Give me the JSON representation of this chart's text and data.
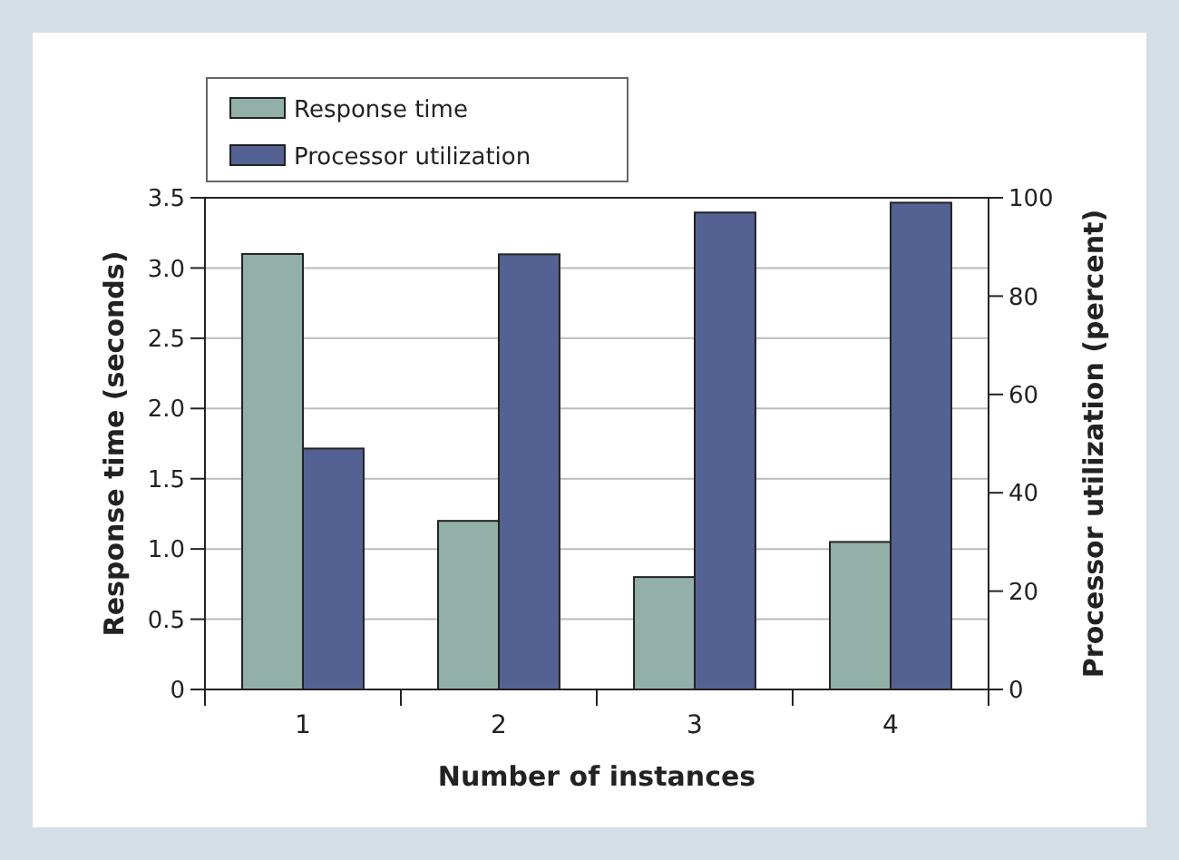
{
  "chart_data": {
    "type": "bar",
    "xlabel": "Number of instances",
    "ylabel": "Response time (seconds)",
    "y2label": "Processor utilization (percent)",
    "categories": [
      "1",
      "2",
      "3",
      "4"
    ],
    "series": [
      {
        "name": "Response time",
        "color": "#93b0a8",
        "values": [
          3.1,
          1.2,
          0.8,
          1.05
        ]
      },
      {
        "name": "Processor utilization",
        "color": "#536292",
        "values": [
          49,
          88.5,
          97,
          99
        ],
        "axis": "y2"
      }
    ],
    "ylim": [
      0,
      3.5
    ],
    "yticks": [
      {
        "value": 0,
        "label": "0"
      },
      0.5,
      {
        "value": 1,
        "label": "1.0"
      },
      1.5,
      {
        "value": 2,
        "label": "2.0"
      },
      2.5,
      {
        "value": 3,
        "label": "3.0"
      },
      3.5
    ],
    "y2lim": [
      0,
      100
    ],
    "y2ticks": [
      0,
      20,
      40,
      60,
      80,
      100
    ],
    "grid": "y",
    "legend": "top left"
  }
}
